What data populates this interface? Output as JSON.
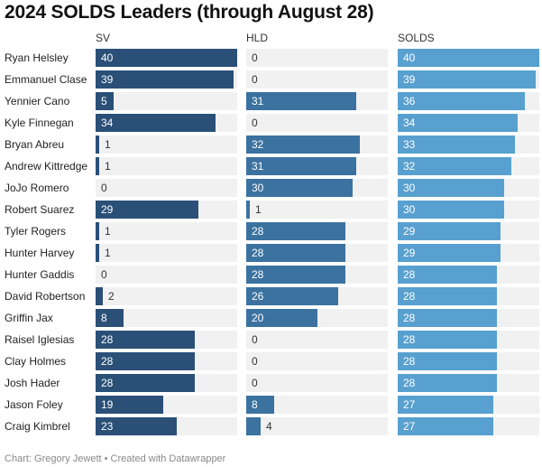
{
  "title": "2024 SOLDS Leaders (through August 28)",
  "footer": "Chart: Gregory Jewett • Created with Datawrapper",
  "colors": {
    "SV": "#2a5078",
    "HLD": "#3b72a0",
    "SOLDS": "#58a0cf",
    "track": "#f1f1f1"
  },
  "chart_data": {
    "type": "bar",
    "title": "2024 SOLDS Leaders (through August 28)",
    "orientation": "horizontal",
    "xlim": [
      0,
      40
    ],
    "grid": false,
    "columns": [
      "SV",
      "HLD",
      "SOLDS"
    ],
    "categories": [
      "Ryan Helsley",
      "Emmanuel Clase",
      "Yennier Cano",
      "Kyle Finnegan",
      "Bryan Abreu",
      "Andrew Kittredge",
      "JoJo Romero",
      "Robert Suarez",
      "Tyler Rogers",
      "Hunter Harvey",
      "Hunter Gaddis",
      "David Robertson",
      "Griffin Jax",
      "Raisel Iglesias",
      "Clay Holmes",
      "Josh Hader",
      "Jason Foley",
      "Craig Kimbrel"
    ],
    "series": [
      {
        "name": "SV",
        "values": [
          40,
          39,
          5,
          34,
          1,
          1,
          0,
          29,
          1,
          1,
          0,
          2,
          8,
          28,
          28,
          28,
          19,
          23
        ]
      },
      {
        "name": "HLD",
        "values": [
          0,
          0,
          31,
          0,
          32,
          31,
          30,
          1,
          28,
          28,
          28,
          26,
          20,
          0,
          0,
          0,
          8,
          4
        ]
      },
      {
        "name": "SOLDS",
        "values": [
          40,
          39,
          36,
          34,
          33,
          32,
          30,
          30,
          29,
          29,
          28,
          28,
          28,
          28,
          28,
          28,
          27,
          27
        ]
      }
    ]
  }
}
